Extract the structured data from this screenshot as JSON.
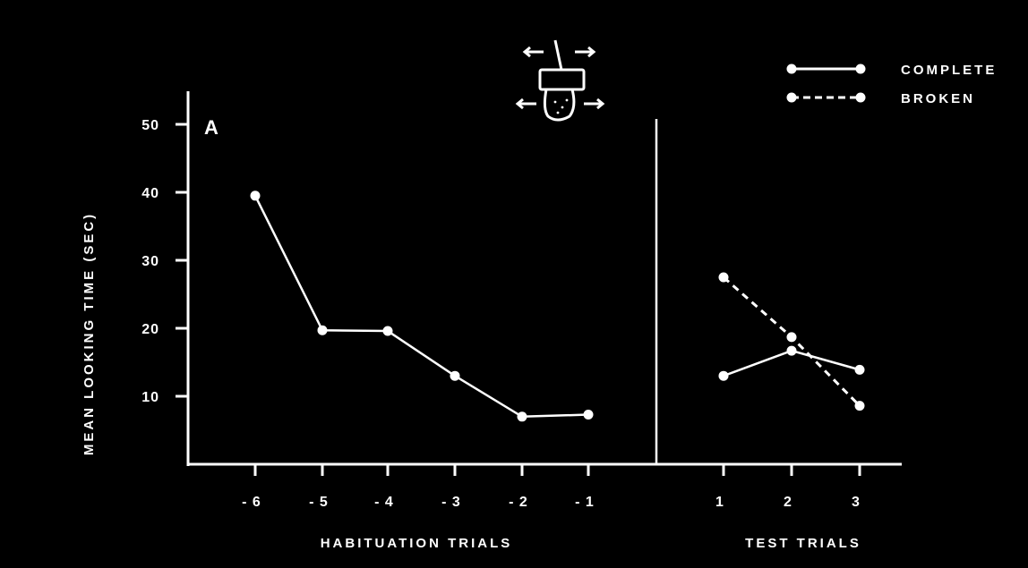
{
  "chart_data": {
    "type": "line",
    "panel_label": "A",
    "ylabel": "MEAN LOOKING TIME (SEC)",
    "ylim": [
      0,
      50
    ],
    "yticks": [
      10,
      20,
      30,
      40,
      50
    ],
    "habituation": {
      "xlabel": "HABITUATION TRIALS",
      "categories": [
        "- 6",
        "- 5",
        "- 4",
        "- 3",
        "- 2",
        "- 1"
      ],
      "series": [
        {
          "name": "COMPLETE",
          "style": "solid",
          "values": [
            39.5,
            19.7,
            19.6,
            13.0,
            7.0,
            7.3
          ]
        }
      ]
    },
    "test": {
      "xlabel": "TEST TRIALS",
      "categories": [
        "1",
        "2",
        "3"
      ],
      "series": [
        {
          "name": "COMPLETE",
          "style": "solid",
          "values": [
            13.0,
            16.7,
            13.9
          ]
        },
        {
          "name": "BROKEN",
          "style": "dashed",
          "values": [
            27.5,
            18.7,
            8.6
          ]
        }
      ]
    },
    "legend": {
      "placement": "top-right",
      "entries": [
        {
          "label": "COMPLETE",
          "style": "solid"
        },
        {
          "label": "BROKEN",
          "style": "dashed"
        }
      ]
    },
    "grid": false,
    "colors": {
      "background": "#000000",
      "foreground": "#ffffff"
    }
  }
}
